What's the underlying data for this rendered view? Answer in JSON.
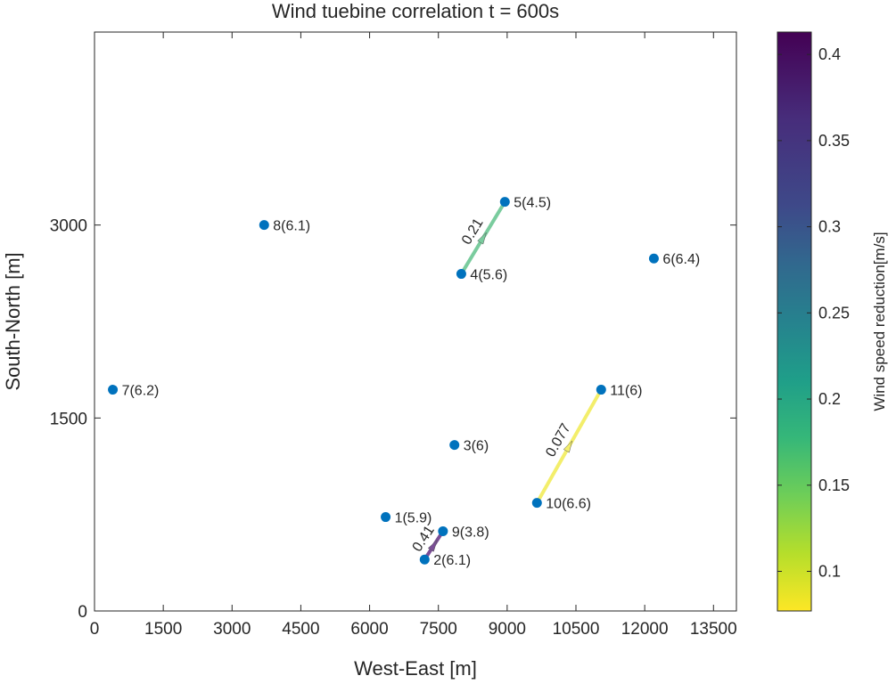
{
  "chart_data": {
    "type": "scatter",
    "title": "Wind tuebine correlation t = 600s",
    "xlabel": "West-East [m]",
    "ylabel": "South-North [m]",
    "xlim": [
      0,
      14000
    ],
    "ylim": [
      0,
      4500
    ],
    "xticks": [
      0,
      1500,
      3000,
      4500,
      6000,
      7500,
      9000,
      10500,
      12000,
      13500
    ],
    "yticks": [
      0,
      1500,
      3000
    ],
    "turbines": [
      {
        "id": 1,
        "label": "1(5.9)",
        "x": 6350,
        "y": 730
      },
      {
        "id": 2,
        "label": "2(6.1)",
        "x": 7200,
        "y": 400
      },
      {
        "id": 3,
        "label": "3(6)",
        "x": 7850,
        "y": 1290
      },
      {
        "id": 4,
        "label": "4(5.6)",
        "x": 8000,
        "y": 2620
      },
      {
        "id": 5,
        "label": "5(4.5)",
        "x": 8950,
        "y": 3180
      },
      {
        "id": 6,
        "label": "6(6.4)",
        "x": 12200,
        "y": 2740
      },
      {
        "id": 7,
        "label": "7(6.2)",
        "x": 400,
        "y": 1720
      },
      {
        "id": 8,
        "label": "8(6.1)",
        "x": 3700,
        "y": 3000
      },
      {
        "id": 9,
        "label": "9(3.8)",
        "x": 7600,
        "y": 620
      },
      {
        "id": 10,
        "label": "10(6.6)",
        "x": 9650,
        "y": 840
      },
      {
        "id": 11,
        "label": "11(6)",
        "x": 11050,
        "y": 1720
      }
    ],
    "correlations": [
      {
        "from": 4,
        "to": 5,
        "value": 0.21,
        "label": "0.21",
        "color": "#7acc9e"
      },
      {
        "from": 10,
        "to": 11,
        "value": 0.077,
        "label": "0.077",
        "color": "#f3ee6b"
      },
      {
        "from": 2,
        "to": 9,
        "value": 0.41,
        "label": "0.41",
        "color": "#7b4e96"
      }
    ],
    "colorbar": {
      "label": "Wind speed reduction[m/s]",
      "range": [
        0.077,
        0.413
      ],
      "ticks": [
        0.1,
        0.15,
        0.2,
        0.25,
        0.3,
        0.35,
        0.4
      ],
      "tick_labels": [
        "0.1",
        "0.15",
        "0.2",
        "0.25",
        "0.3",
        "0.35",
        "0.4"
      ],
      "colormap": "viridis-reversed"
    },
    "marker_color": "#0072bd",
    "grid": false
  }
}
